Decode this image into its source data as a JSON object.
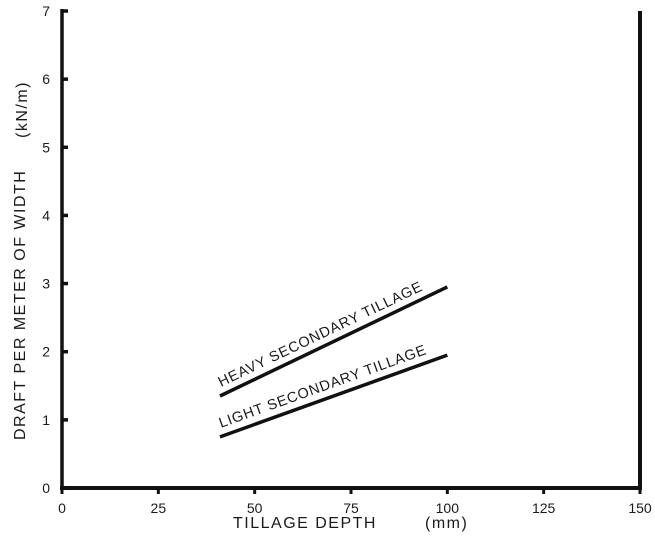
{
  "chart_data": {
    "type": "line",
    "title": "",
    "xlabel": "TILLAGE DEPTH",
    "xunit": "(mm)",
    "ylabel": "DRAFT PER METER OF WIDTH",
    "yunit": "(kN/m)",
    "xlim": [
      0,
      150
    ],
    "ylim": [
      0,
      7
    ],
    "xticks": [
      0,
      25,
      50,
      75,
      100,
      125,
      150
    ],
    "yticks": [
      0,
      1,
      2,
      3,
      4,
      5,
      6,
      7
    ],
    "grid": false,
    "series": [
      {
        "name": "HEAVY SECONDARY TILLAGE",
        "x": [
          41,
          100
        ],
        "y": [
          1.35,
          2.95
        ]
      },
      {
        "name": "LIGHT SECONDARY TILLAGE",
        "x": [
          41,
          100
        ],
        "y": [
          0.75,
          1.95
        ]
      }
    ],
    "colors": {
      "line": "#111111",
      "axis": "#111111",
      "text": "#1a1a1a"
    }
  }
}
